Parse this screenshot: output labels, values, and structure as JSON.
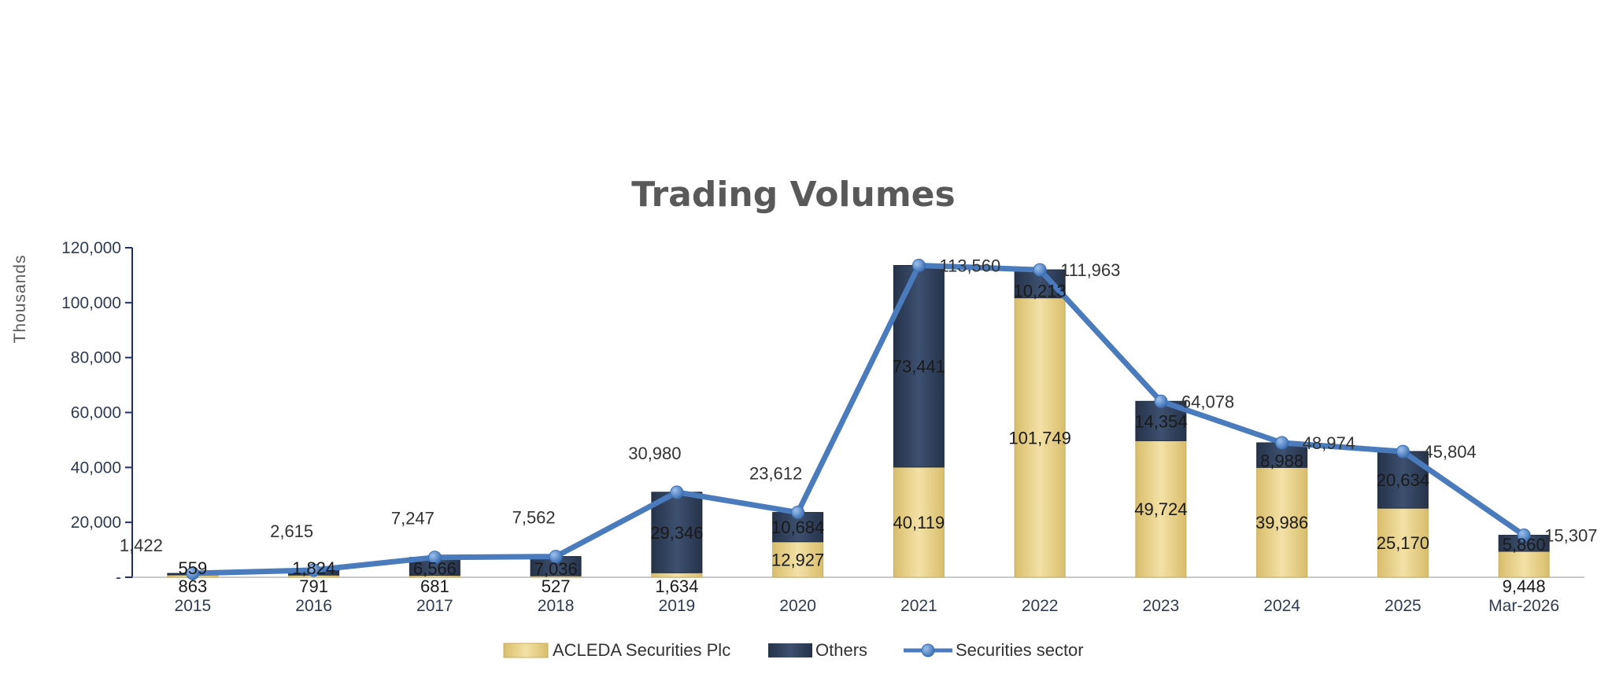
{
  "chart_data": {
    "type": "bar",
    "stacked": true,
    "title": "Trading Volumes",
    "ylabel": "Thousands",
    "xlabel": "",
    "categories": [
      "2015",
      "2016",
      "2017",
      "2018",
      "2019",
      "2020",
      "2021",
      "2022",
      "2023",
      "2024",
      "2025",
      "Mar-2026"
    ],
    "ylim": [
      0,
      120000
    ],
    "yticks": [
      {
        "value": 0,
        "label": "-"
      },
      {
        "value": 20000,
        "label": "20,000"
      },
      {
        "value": 40000,
        "label": "40,000"
      },
      {
        "value": 60000,
        "label": "60,000"
      },
      {
        "value": 80000,
        "label": "80,000"
      },
      {
        "value": 100000,
        "label": "100,000"
      },
      {
        "value": 120000,
        "label": "120,000"
      }
    ],
    "grid": false,
    "legend_position": "bottom",
    "series": [
      {
        "name": "ACLEDA Securities Plc",
        "kind": "bar",
        "color": "#e9d28f",
        "values": [
          863,
          791,
          681,
          527,
          1634,
          12927,
          40119,
          101749,
          49724,
          39986,
          25170,
          9448
        ],
        "labels": [
          "863",
          "791",
          "681",
          "527",
          "1,634",
          "12,927",
          "40,119",
          "101,749",
          "49,724",
          "39,986",
          "25,170",
          "9,448"
        ]
      },
      {
        "name": "Others",
        "kind": "bar",
        "color": "#33435f",
        "values": [
          559,
          1824,
          6566,
          7036,
          29346,
          10684,
          73441,
          10213,
          14354,
          8988,
          20634,
          5860
        ],
        "labels": [
          "559",
          "1,824",
          "6,566",
          "7,036",
          "29,346",
          "10,684",
          "73,441",
          "10,213",
          "14,354",
          "8,988",
          "20,634",
          "5,860"
        ]
      },
      {
        "name": "Securities sector",
        "kind": "line",
        "color": "#4a7bbd",
        "values": [
          1422,
          2615,
          7247,
          7562,
          30980,
          23612,
          113560,
          111963,
          64078,
          48974,
          45804,
          15307
        ],
        "labels": [
          "1,422",
          "2,615",
          "7,247",
          "7,562",
          "30,980",
          "23,612",
          "113,560",
          "111,963",
          "64,078",
          "48,974",
          "45,804",
          "15,307"
        ]
      }
    ]
  }
}
